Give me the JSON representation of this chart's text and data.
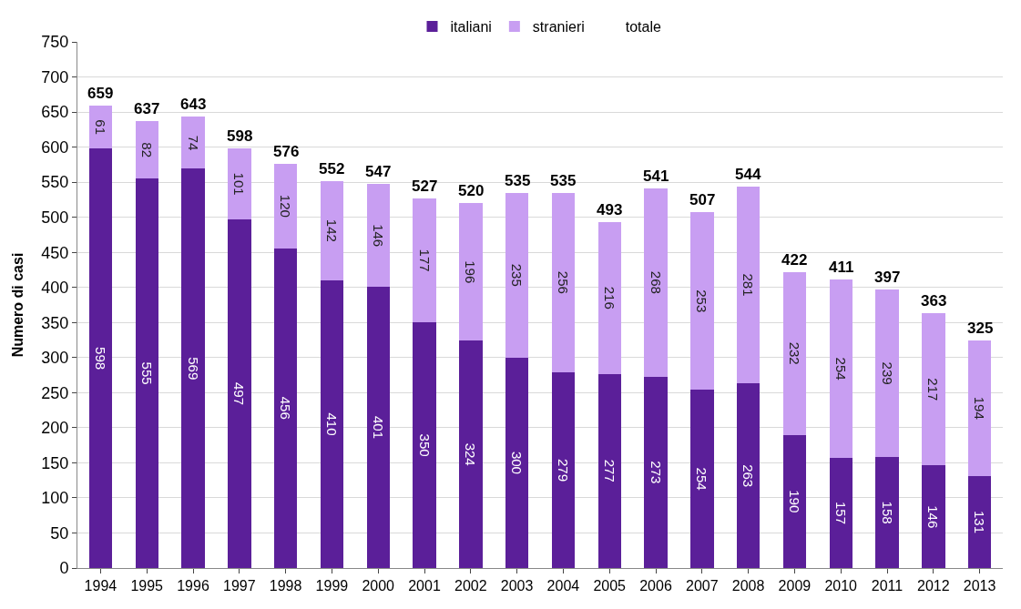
{
  "chart_data": {
    "type": "bar",
    "stacked": true,
    "ylabel": "Numero di casi",
    "categories": [
      "1994",
      "1995",
      "1996",
      "1997",
      "1998",
      "1999",
      "2000",
      "2001",
      "2002",
      "2003",
      "2004",
      "2005",
      "2006",
      "2007",
      "2008",
      "2009",
      "2010",
      "2011",
      "2012",
      "2013"
    ],
    "series": [
      {
        "name": "italiani",
        "color": "#5b1f99",
        "values": [
          598,
          555,
          569,
          497,
          456,
          410,
          401,
          350,
          324,
          300,
          279,
          277,
          273,
          254,
          263,
          190,
          157,
          158,
          146,
          131
        ]
      },
      {
        "name": "stranieri",
        "color": "#c89ef2",
        "values": [
          61,
          82,
          74,
          101,
          120,
          142,
          146,
          177,
          196,
          235,
          256,
          216,
          268,
          253,
          281,
          232,
          254,
          239,
          217,
          194
        ]
      }
    ],
    "totals": [
      "659",
      "637",
      "643",
      "598",
      "576",
      "552",
      "547",
      "527",
      "520",
      "535",
      "535",
      "493",
      "541",
      "507",
      "544",
      "422",
      "411",
      "397",
      "363",
      "325"
    ],
    "annotations": [
      "totale"
    ],
    "ylim": [
      0,
      750
    ],
    "yticks": [
      0,
      50,
      100,
      150,
      200,
      250,
      300,
      350,
      400,
      450,
      500,
      550,
      600,
      650,
      700,
      750
    ],
    "grid": "y",
    "legend": "top",
    "data_labels": true
  }
}
